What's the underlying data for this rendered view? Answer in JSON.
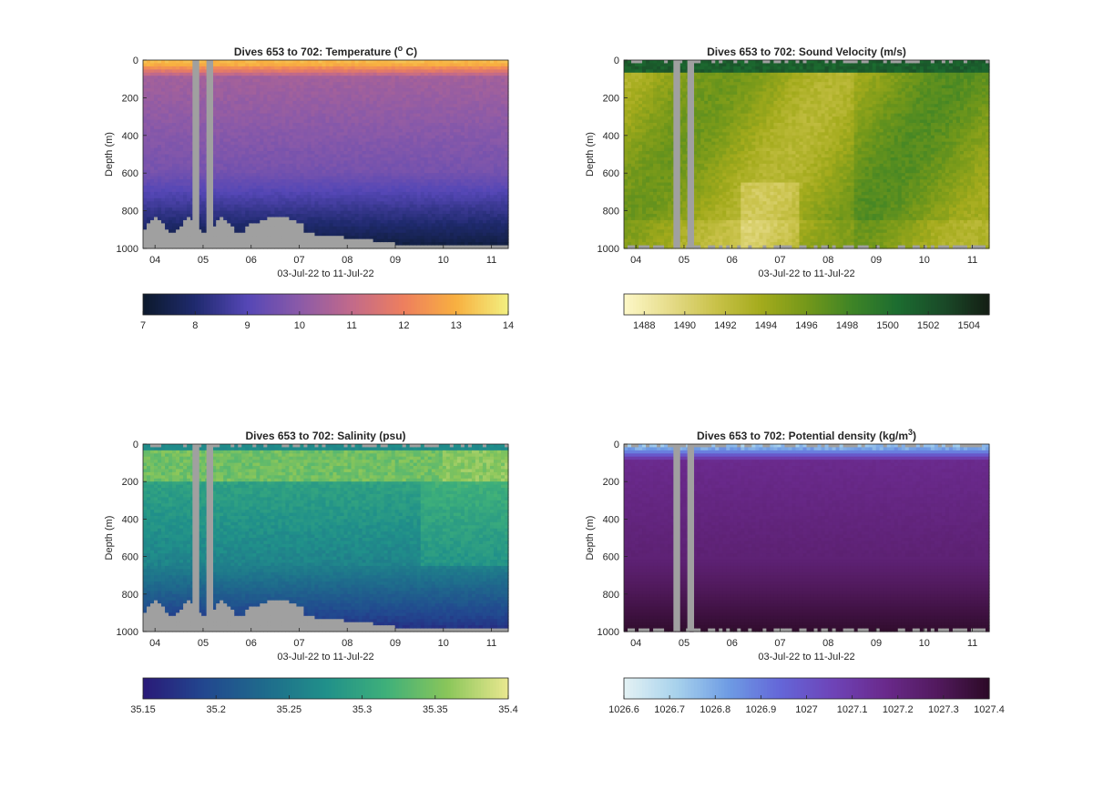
{
  "figure": {
    "shared": {
      "ylabel": "Depth (m)",
      "xlabel": "03-Jul-22 to 11-Jul-22",
      "x_ticks": [
        "04",
        "05",
        "06",
        "07",
        "08",
        "09",
        "10",
        "11"
      ],
      "y_ticks": [
        "0",
        "200",
        "400",
        "600",
        "800",
        "1000"
      ]
    }
  },
  "chart_data": [
    {
      "type": "heatmap",
      "title_main": "Dives 653 to 702: Temperature (",
      "title_sup": "o",
      "title_end": " C)",
      "xlabel": "03-Jul-22 to 11-Jul-22",
      "ylabel": "Depth (m)",
      "x_range_days": [
        3.75,
        11.35
      ],
      "ylim": [
        1000,
        0
      ],
      "y_ticks": [
        0,
        200,
        400,
        600,
        800,
        1000
      ],
      "x_ticks": [
        "04",
        "05",
        "06",
        "07",
        "08",
        "09",
        "10",
        "11"
      ],
      "gaps_days": [
        [
          4.78,
          4.92
        ],
        [
          5.07,
          5.21
        ]
      ],
      "colorbar": {
        "min": 7,
        "max": 14,
        "ticks": [
          "7",
          "8",
          "9",
          "10",
          "11",
          "12",
          "13",
          "14"
        ],
        "colormap": [
          "#0c1a2c",
          "#1f2a6e",
          "#5547b6",
          "#8b5aa8",
          "#c26a8a",
          "#ee7f5e",
          "#f8b040",
          "#f2f080"
        ]
      }
    },
    {
      "type": "heatmap",
      "title_main": "Dives 653 to 702: Sound Velocity (m/s)",
      "title_sup": "",
      "title_end": "",
      "xlabel": "03-Jul-22 to 11-Jul-22",
      "ylabel": "Depth (m)",
      "x_range_days": [
        3.75,
        11.35
      ],
      "ylim": [
        1000,
        0
      ],
      "y_ticks": [
        0,
        200,
        400,
        600,
        800,
        1000
      ],
      "x_ticks": [
        "04",
        "05",
        "06",
        "07",
        "08",
        "09",
        "10",
        "11"
      ],
      "gaps_days": [
        [
          4.78,
          4.92
        ],
        [
          5.07,
          5.21
        ]
      ],
      "colorbar": {
        "min": 1487,
        "max": 1505,
        "ticks": [
          "1488",
          "1490",
          "1492",
          "1494",
          "1496",
          "1498",
          "1500",
          "1502",
          "1504"
        ],
        "colormap": [
          "#fdf8c8",
          "#e6dc8a",
          "#c9c24a",
          "#a4ab1c",
          "#74981a",
          "#3e8426",
          "#1c6c30",
          "#1a4a28",
          "#141e14"
        ]
      }
    },
    {
      "type": "heatmap",
      "title_main": "Dives 653 to 702: Salinity (psu)",
      "title_sup": "",
      "title_end": "",
      "xlabel": "03-Jul-22 to 11-Jul-22",
      "ylabel": "Depth (m)",
      "x_range_days": [
        3.75,
        11.35
      ],
      "ylim": [
        1000,
        0
      ],
      "y_ticks": [
        0,
        200,
        400,
        600,
        800,
        1000
      ],
      "x_ticks": [
        "04",
        "05",
        "06",
        "07",
        "08",
        "09",
        "10",
        "11"
      ],
      "gaps_days": [
        [
          4.78,
          4.92
        ],
        [
          5.07,
          5.21
        ]
      ],
      "colorbar": {
        "min": 35.15,
        "max": 35.4,
        "ticks": [
          "35.15",
          "35.2",
          "35.25",
          "35.3",
          "35.35",
          "35.4"
        ],
        "colormap": [
          "#2a1a78",
          "#22478f",
          "#1f6b8c",
          "#20908a",
          "#3fb07a",
          "#8ac65a",
          "#eae890"
        ]
      }
    },
    {
      "type": "heatmap",
      "title_main": "Dives 653 to 702: Potential density (kg/m",
      "title_sup": "3",
      "title_end": ")",
      "xlabel": "03-Jul-22 to 11-Jul-22",
      "ylabel": "Depth (m)",
      "x_range_days": [
        3.75,
        11.35
      ],
      "ylim": [
        1000,
        0
      ],
      "y_ticks": [
        0,
        200,
        400,
        600,
        800,
        1000
      ],
      "x_ticks": [
        "04",
        "05",
        "06",
        "07",
        "08",
        "09",
        "10",
        "11"
      ],
      "gaps_days": [
        [
          4.78,
          4.92
        ],
        [
          5.07,
          5.21
        ]
      ],
      "colorbar": {
        "min": 1026.6,
        "max": 1027.4,
        "ticks": [
          "1026.6",
          "1026.7",
          "1026.8",
          "1026.9",
          "1027",
          "1027.1",
          "1027.2",
          "1027.3",
          "1027.4"
        ],
        "colormap": [
          "#e4f2f4",
          "#a8d2ec",
          "#6e9ce4",
          "#6466d8",
          "#6e44b8",
          "#6a2a8c",
          "#521a5e",
          "#2c0a26"
        ]
      }
    }
  ]
}
